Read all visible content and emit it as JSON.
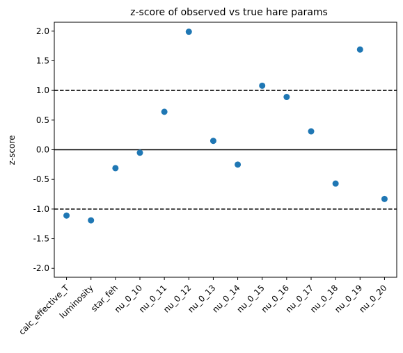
{
  "chart_data": {
    "type": "scatter",
    "title": "z-score of observed vs true hare params",
    "xlabel": "",
    "ylabel": "z-score",
    "categories": [
      "calc_effective_T",
      "luminosity",
      "star_feh",
      "nu_0_10",
      "nu_0_11",
      "nu_0_12",
      "nu_0_13",
      "nu_0_14",
      "nu_0_15",
      "nu_0_16",
      "nu_0_17",
      "nu_0_18",
      "nu_0_19",
      "nu_0_20"
    ],
    "values": [
      -1.11,
      -1.19,
      -0.31,
      -0.05,
      0.64,
      1.99,
      0.15,
      -0.25,
      1.08,
      0.89,
      0.31,
      -0.57,
      1.69,
      -0.83
    ],
    "ylim": [
      -2.15,
      2.15
    ],
    "yticks": [
      "2.0",
      "1.5",
      "1.0",
      "0.5",
      "0.0",
      "-0.5",
      "-1.0",
      "-1.5",
      "-2.0"
    ],
    "reference_lines": [
      {
        "y": 0.0,
        "style": "solid"
      },
      {
        "y": 1.0,
        "style": "dashed"
      },
      {
        "y": -1.0,
        "style": "dashed"
      }
    ],
    "grid": false,
    "legend": "none",
    "marker_color": "#1f77b4"
  }
}
